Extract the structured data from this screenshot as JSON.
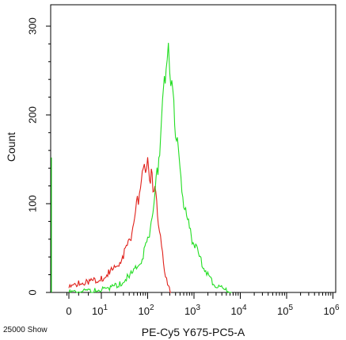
{
  "chart_data": {
    "type": "line",
    "title": "",
    "xlabel": "PE-Cy5 Y675-PC5-A",
    "ylabel": "Count",
    "footer_note": "25000 Show",
    "x_scale": "logicle",
    "x_tick_labels": [
      "0",
      "10",
      "10",
      "10",
      "10",
      "10",
      "10"
    ],
    "x_tick_exponents": [
      "",
      "1",
      "2",
      "3",
      "4",
      "5",
      "6"
    ],
    "x_tick_values": [
      0,
      10,
      100,
      1000,
      10000,
      100000,
      1000000
    ],
    "ylim": [
      0,
      325
    ],
    "y_ticks": [
      0,
      100,
      200,
      300
    ],
    "y_tick_labels": [
      "0",
      "100",
      "200",
      "300"
    ],
    "grid": false,
    "legend": "none",
    "series": [
      {
        "color": "#e0201a",
        "x": [
          0,
          3,
          6,
          10,
          15,
          20,
          30,
          40,
          50,
          60,
          70,
          80,
          90,
          100,
          110,
          120,
          130,
          150,
          170,
          200,
          230,
          270,
          320
        ],
        "y": [
          5,
          10,
          12,
          16,
          22,
          28,
          42,
          58,
          78,
          100,
          118,
          130,
          138,
          142,
          136,
          132,
          122,
          105,
          80,
          50,
          25,
          8,
          0
        ]
      },
      {
        "color": "#22dd22",
        "x": [
          0,
          8,
          15,
          25,
          40,
          60,
          80,
          100,
          130,
          160,
          190,
          220,
          250,
          280,
          300,
          350,
          400,
          500,
          600,
          800,
          1000,
          1300,
          1700,
          2200,
          3000,
          4500,
          6500
        ],
        "y": [
          0,
          2,
          5,
          10,
          18,
          28,
          42,
          60,
          90,
          130,
          175,
          220,
          255,
          270,
          258,
          220,
          185,
          130,
          100,
          70,
          55,
          40,
          28,
          15,
          8,
          3,
          0
        ]
      },
      {
        "color": "#22dd22",
        "x": [
          0,
          0
        ],
        "y": [
          0,
          152
        ]
      }
    ]
  }
}
